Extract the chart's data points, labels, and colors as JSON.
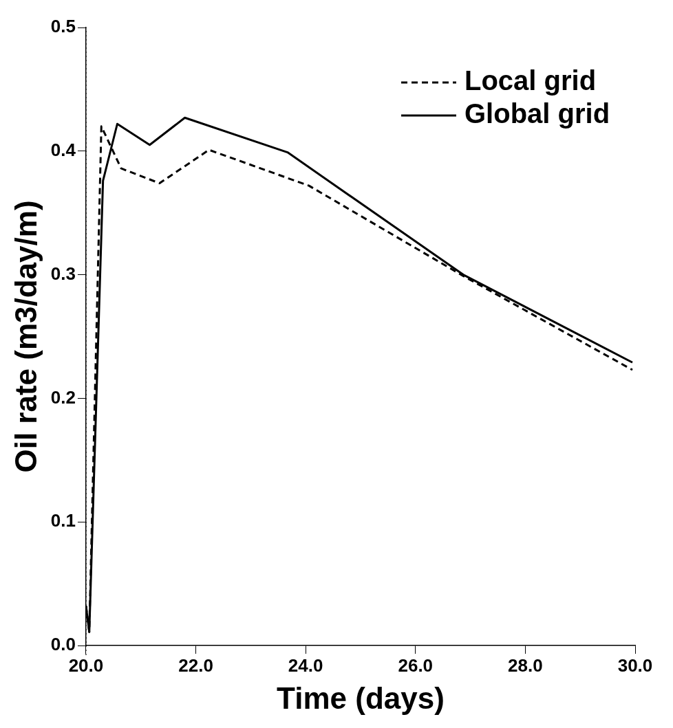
{
  "chart_data": {
    "type": "line",
    "xlabel": "Time (days)",
    "ylabel": "Oil rate (m3/day/m)",
    "xlim": [
      20,
      30
    ],
    "xticks": [
      {
        "value": 20,
        "label": "20.0"
      },
      {
        "value": 22,
        "label": "22.0"
      },
      {
        "value": 24,
        "label": "24.0"
      },
      {
        "value": 26,
        "label": "26.0"
      },
      {
        "value": 28,
        "label": "28.0"
      },
      {
        "value": 30,
        "label": "30.0"
      }
    ],
    "ylim": [
      0,
      0.5
    ],
    "yticks": [
      {
        "value": 0,
        "label": "0.0"
      },
      0.1,
      0.2,
      0.3,
      0.4,
      0.5
    ],
    "legend": "top right",
    "grid": false,
    "marker": "none",
    "ref_lines": [
      {
        "axis": "x",
        "value": 20,
        "line_style": "dotted"
      }
    ],
    "series": [
      {
        "name": "Local grid",
        "color": "#000000",
        "line_style": "dashed",
        "x": [
          20.0,
          20.06,
          20.28,
          20.64,
          21.34,
          22.24,
          24.06,
          26.87,
          29.95
        ],
        "values": [
          0.032,
          0.011,
          0.42,
          0.386,
          0.374,
          0.401,
          0.372,
          0.299,
          0.223
        ]
      },
      {
        "name": "Global grid",
        "color": "#000000",
        "line_style": "solid",
        "x": [
          20.0,
          20.06,
          20.31,
          20.57,
          21.16,
          21.8,
          23.67,
          26.87,
          29.95
        ],
        "values": [
          0.032,
          0.011,
          0.376,
          0.422,
          0.405,
          0.427,
          0.399,
          0.3,
          0.229
        ]
      }
    ]
  }
}
